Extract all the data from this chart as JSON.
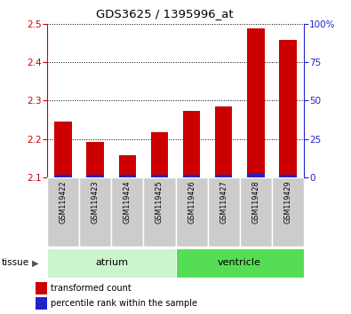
{
  "title": "GDS3625 / 1395996_at",
  "samples": [
    "GSM119422",
    "GSM119423",
    "GSM119424",
    "GSM119425",
    "GSM119426",
    "GSM119427",
    "GSM119428",
    "GSM119429"
  ],
  "transformed_count": [
    2.245,
    2.193,
    2.157,
    2.217,
    2.272,
    2.284,
    2.487,
    2.458
  ],
  "percentile_rank": [
    2,
    2,
    2,
    2,
    2,
    2,
    3,
    2
  ],
  "ylim_left": [
    2.1,
    2.5
  ],
  "ylim_right": [
    0,
    100
  ],
  "yticks_left": [
    2.1,
    2.2,
    2.3,
    2.4,
    2.5
  ],
  "yticks_right": [
    0,
    25,
    50,
    75,
    100
  ],
  "groups": [
    {
      "label": "atrium",
      "start": 0,
      "end": 4,
      "color": "#ccf5cc"
    },
    {
      "label": "ventricle",
      "start": 4,
      "end": 8,
      "color": "#55dd55"
    }
  ],
  "bar_color_red": "#cc0000",
  "bar_color_blue": "#2222cc",
  "bar_width": 0.55,
  "tissue_label": "tissue",
  "legend_red": "transformed count",
  "legend_blue": "percentile rank within the sample",
  "background_color": "#ffffff",
  "tick_color_left": "#cc0000",
  "tick_color_right": "#2222cc",
  "grid_color": "#000000",
  "base_value": 2.1,
  "percentile_scale_factor": 0.004,
  "sample_box_color": "#cccccc",
  "n_samples": 8
}
